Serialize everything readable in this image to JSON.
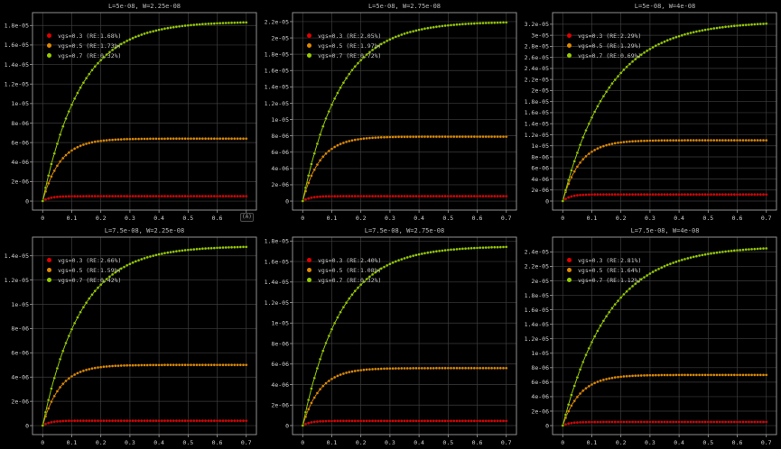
{
  "badge": "(A)",
  "colors": {
    "background": "#000000",
    "grid": "#3c3c3c",
    "spine": "#9f9f9f",
    "tick_label": "#d0d0d0",
    "title": "#b9b9b9",
    "legend_text": "#c8c8c8",
    "red": "#e00000",
    "orange": "#e08900",
    "green": "#96cc00"
  },
  "chart_data": [
    {
      "type": "line",
      "title": "L=5e-08, W=2.25e-08",
      "xlabel": "",
      "ylabel": "",
      "xlim": [
        -0.035,
        0.735
      ],
      "ylim": [
        -9.2e-07,
        1.932e-05
      ],
      "xticks": [
        "0",
        "0.1",
        "0.2",
        "0.3",
        "0.4",
        "0.5",
        "0.6",
        "0.7"
      ],
      "yticks": [
        "0",
        "2e-06",
        "4e-06",
        "6e-06",
        "8e-06",
        "1e-05",
        "1.2e-05",
        "1.4e-05",
        "1.6e-05",
        "1.8e-05"
      ],
      "legend_position": "upper left",
      "grid": true,
      "x": [
        0,
        0.05,
        0.1,
        0.15,
        0.2,
        0.25,
        0.3,
        0.35,
        0.4,
        0.45,
        0.5,
        0.55,
        0.6,
        0.65,
        0.7
      ],
      "series": [
        {
          "name": "vgs=0.3",
          "label": "vgs=0.3 (RE:1.68%)",
          "color": "#e00000",
          "sat": 5e-07,
          "tau": 0.025,
          "y": [
            0,
            4.3e-07,
            4.9e-07,
            5e-07,
            5e-07,
            5e-07,
            5e-07,
            5e-07,
            5e-07,
            5e-07,
            5e-07,
            5e-07,
            5e-07,
            5e-07,
            5e-07
          ]
        },
        {
          "name": "vgs=0.5",
          "label": "vgs=0.5 (RE:1.73%)",
          "color": "#e08900",
          "sat": 6.4e-06,
          "tau": 0.06,
          "y": [
            0,
            3.6e-06,
            5.2e-06,
            5.9e-06,
            6.2e-06,
            6.3e-06,
            6.36e-06,
            6.38e-06,
            6.39e-06,
            6.4e-06,
            6.4e-06,
            6.4e-06,
            6.4e-06,
            6.4e-06,
            6.4e-06
          ]
        },
        {
          "name": "vgs=0.7",
          "label": "vgs=0.7 (RE:0.32%)",
          "color": "#96cc00",
          "sat": 1.84e-05,
          "tau": 0.13,
          "y": [
            0,
            5.9e-06,
            9.9e-06,
            1.26e-05,
            1.44e-05,
            1.57e-05,
            1.66e-05,
            1.71e-05,
            1.76e-05,
            1.78e-05,
            1.8e-05,
            1.81e-05,
            1.82e-05,
            1.83e-05,
            1.83e-05
          ]
        }
      ]
    },
    {
      "type": "line",
      "title": "L=5e-08, W=2.75e-08",
      "xlabel": "",
      "ylabel": "",
      "xlim": [
        -0.035,
        0.735
      ],
      "ylim": [
        -1.1e-06,
        2.31e-05
      ],
      "xticks": [
        "0",
        "0.1",
        "0.2",
        "0.3",
        "0.4",
        "0.5",
        "0.6",
        "0.7"
      ],
      "yticks": [
        "0",
        "2e-06",
        "4e-06",
        "6e-06",
        "8e-06",
        "1e-05",
        "1.2e-05",
        "1.4e-05",
        "1.6e-05",
        "1.8e-05",
        "2e-05",
        "2.2e-05"
      ],
      "legend_position": "upper left",
      "grid": true,
      "x": [
        0,
        0.05,
        0.1,
        0.15,
        0.2,
        0.25,
        0.3,
        0.35,
        0.4,
        0.45,
        0.5,
        0.55,
        0.6,
        0.65,
        0.7
      ],
      "series": [
        {
          "name": "vgs=0.3",
          "label": "vgs=0.3 (RE:2.05%)",
          "color": "#e00000",
          "sat": 6e-07,
          "tau": 0.025,
          "y": [
            0,
            5.2e-07,
            5.9e-07,
            6e-07,
            6e-07,
            6e-07,
            6e-07,
            6e-07,
            6e-07,
            6e-07,
            6e-07,
            6e-07,
            6e-07,
            6e-07,
            6e-07
          ]
        },
        {
          "name": "vgs=0.5",
          "label": "vgs=0.5 (RE:1.97%)",
          "color": "#e08900",
          "sat": 7.9e-06,
          "tau": 0.06,
          "y": [
            0,
            4.5e-06,
            6.4e-06,
            7.3e-06,
            7.6e-06,
            7.8e-06,
            7.85e-06,
            7.88e-06,
            7.89e-06,
            7.9e-06,
            7.9e-06,
            7.9e-06,
            7.9e-06,
            7.9e-06,
            7.9e-06
          ]
        },
        {
          "name": "vgs=0.7",
          "label": "vgs=0.7 (RE:0.72%)",
          "color": "#96cc00",
          "sat": 2.2e-05,
          "tau": 0.13,
          "y": [
            0,
            7e-06,
            1.18e-05,
            1.51e-05,
            1.73e-05,
            1.88e-05,
            1.98e-05,
            2.05e-05,
            2.1e-05,
            2.13e-05,
            2.15e-05,
            2.17e-05,
            2.18e-05,
            2.18e-05,
            2.19e-05
          ]
        }
      ]
    },
    {
      "type": "line",
      "title": "L=5e-08, W=4e-08",
      "xlabel": "",
      "ylabel": "",
      "xlim": [
        -0.035,
        0.735
      ],
      "ylim": [
        -1.63e-06,
        3.41e-05
      ],
      "xticks": [
        "0",
        "0.1",
        "0.2",
        "0.3",
        "0.4",
        "0.5",
        "0.6",
        "0.7"
      ],
      "yticks": [
        "0",
        "2e-06",
        "4e-06",
        "6e-06",
        "8e-06",
        "1e-05",
        "1.2e-05",
        "1.4e-05",
        "1.6e-05",
        "1.8e-05",
        "2e-05",
        "2.2e-05",
        "2.4e-05",
        "2.6e-05",
        "2.8e-05",
        "3e-05",
        "3.2e-05"
      ],
      "legend_position": "upper left",
      "grid": true,
      "x": [
        0,
        0.05,
        0.1,
        0.15,
        0.2,
        0.25,
        0.3,
        0.35,
        0.4,
        0.45,
        0.5,
        0.55,
        0.6,
        0.65,
        0.7
      ],
      "series": [
        {
          "name": "vgs=0.3",
          "label": "vgs=0.3 (RE:2.29%)",
          "color": "#e00000",
          "sat": 1.2e-06,
          "tau": 0.025,
          "y": [
            0,
            1e-06,
            1.18e-06,
            1.2e-06,
            1.2e-06,
            1.2e-06,
            1.2e-06,
            1.2e-06,
            1.2e-06,
            1.2e-06,
            1.2e-06,
            1.2e-06,
            1.2e-06,
            1.2e-06,
            1.2e-06
          ]
        },
        {
          "name": "vgs=0.5",
          "label": "vgs=0.5 (RE:1.29%)",
          "color": "#e08900",
          "sat": 1.1e-05,
          "tau": 0.06,
          "y": [
            0,
            6.2e-06,
            8.9e-06,
            1.01e-05,
            1.06e-05,
            1.08e-05,
            1.09e-05,
            1.1e-05,
            1.1e-05,
            1.1e-05,
            1.1e-05,
            1.1e-05,
            1.1e-05,
            1.1e-05,
            1.1e-05
          ]
        },
        {
          "name": "vgs=0.7",
          "label": "vgs=0.7 (RE:0.69%)",
          "color": "#96cc00",
          "sat": 3.25e-05,
          "tau": 0.16,
          "y": [
            0,
            8.7e-06,
            1.51e-05,
            1.98e-05,
            2.32e-05,
            2.57e-05,
            2.75e-05,
            2.89e-05,
            2.98e-05,
            3.06e-05,
            3.11e-05,
            3.15e-05,
            3.17e-05,
            3.19e-05,
            3.21e-05
          ]
        }
      ]
    },
    {
      "type": "line",
      "title": "L=7.5e-08, W=2.25e-08",
      "xlabel": "",
      "ylabel": "",
      "xlim": [
        -0.035,
        0.735
      ],
      "ylim": [
        -7.4e-07,
        1.554e-05
      ],
      "xticks": [
        "0",
        "0.1",
        "0.2",
        "0.3",
        "0.4",
        "0.5",
        "0.6",
        "0.7"
      ],
      "yticks": [
        "0",
        "2e-06",
        "4e-06",
        "6e-06",
        "8e-06",
        "1e-05",
        "1.2e-05",
        "1.4e-05"
      ],
      "legend_position": "upper left",
      "grid": true,
      "x": [
        0,
        0.05,
        0.1,
        0.15,
        0.2,
        0.25,
        0.3,
        0.35,
        0.4,
        0.45,
        0.5,
        0.55,
        0.6,
        0.65,
        0.7
      ],
      "series": [
        {
          "name": "vgs=0.3",
          "label": "vgs=0.3 (RE:2.66%)",
          "color": "#e00000",
          "sat": 4e-07,
          "tau": 0.025,
          "y": [
            0,
            3.5e-07,
            3.9e-07,
            4e-07,
            4e-07,
            4e-07,
            4e-07,
            4e-07,
            4e-07,
            4e-07,
            4e-07,
            4e-07,
            4e-07,
            4e-07,
            4e-07
          ]
        },
        {
          "name": "vgs=0.5",
          "label": "vgs=0.5 (RE:1.59%)",
          "color": "#e08900",
          "sat": 5e-06,
          "tau": 0.06,
          "y": [
            0,
            2.8e-06,
            4.1e-06,
            4.6e-06,
            4.8e-06,
            4.9e-06,
            4.97e-06,
            4.99e-06,
            5e-06,
            5e-06,
            5e-06,
            5e-06,
            5e-06,
            5e-06,
            5e-06
          ]
        },
        {
          "name": "vgs=0.7",
          "label": "vgs=0.7 (RE:0.42%)",
          "color": "#96cc00",
          "sat": 1.48e-05,
          "tau": 0.13,
          "y": [
            0,
            4.7e-06,
            7.9e-06,
            1.01e-05,
            1.16e-05,
            1.26e-05,
            1.33e-05,
            1.38e-05,
            1.41e-05,
            1.43e-05,
            1.45e-05,
            1.46e-05,
            1.47e-05,
            1.47e-05,
            1.47e-05
          ]
        }
      ]
    },
    {
      "type": "line",
      "title": "L=7.5e-08, W=2.75e-08",
      "xlabel": "",
      "ylabel": "",
      "xlim": [
        -0.035,
        0.735
      ],
      "ylim": [
        -8.8e-07,
        1.838e-05
      ],
      "xticks": [
        "0",
        "0.1",
        "0.2",
        "0.3",
        "0.4",
        "0.5",
        "0.6",
        "0.7"
      ],
      "yticks": [
        "0",
        "2e-06",
        "4e-06",
        "6e-06",
        "8e-06",
        "1e-05",
        "1.2e-05",
        "1.4e-05",
        "1.6e-05",
        "1.8e-05"
      ],
      "legend_position": "upper left",
      "grid": true,
      "x": [
        0,
        0.05,
        0.1,
        0.15,
        0.2,
        0.25,
        0.3,
        0.35,
        0.4,
        0.45,
        0.5,
        0.55,
        0.6,
        0.65,
        0.7
      ],
      "series": [
        {
          "name": "vgs=0.3",
          "label": "vgs=0.3 (RE:2.40%)",
          "color": "#e00000",
          "sat": 4.5e-07,
          "tau": 0.025,
          "y": [
            0,
            3.9e-07,
            4.4e-07,
            4.5e-07,
            4.5e-07,
            4.5e-07,
            4.5e-07,
            4.5e-07,
            4.5e-07,
            4.5e-07,
            4.5e-07,
            4.5e-07,
            4.5e-07,
            4.5e-07,
            4.5e-07
          ]
        },
        {
          "name": "vgs=0.5",
          "label": "vgs=0.5 (RE:1.08%)",
          "color": "#e08900",
          "sat": 5.6e-06,
          "tau": 0.06,
          "y": [
            0,
            3.2e-06,
            4.5e-06,
            5.1e-06,
            5.4e-06,
            5.5e-06,
            5.56e-06,
            5.58e-06,
            5.59e-06,
            5.6e-06,
            5.6e-06,
            5.6e-06,
            5.6e-06,
            5.6e-06,
            5.6e-06
          ]
        },
        {
          "name": "vgs=0.7",
          "label": "vgs=0.7 (RE:0.32%)",
          "color": "#96cc00",
          "sat": 1.75e-05,
          "tau": 0.13,
          "y": [
            0,
            5.6e-06,
            9.4e-06,
            1.2e-05,
            1.37e-05,
            1.49e-05,
            1.58e-05,
            1.63e-05,
            1.67e-05,
            1.7e-05,
            1.71e-05,
            1.73e-05,
            1.73e-05,
            1.74e-05,
            1.74e-05
          ]
        }
      ]
    },
    {
      "type": "line",
      "title": "L=7.5e-08, W=4e-08",
      "xlabel": "",
      "ylabel": "",
      "xlim": [
        -0.035,
        0.735
      ],
      "ylim": [
        -1.24e-06,
        2.604e-05
      ],
      "xticks": [
        "0",
        "0.1",
        "0.2",
        "0.3",
        "0.4",
        "0.5",
        "0.6",
        "0.7"
      ],
      "yticks": [
        "0",
        "2e-06",
        "4e-06",
        "6e-06",
        "8e-06",
        "1e-05",
        "1.2e-05",
        "1.4e-05",
        "1.6e-05",
        "1.8e-05",
        "2e-05",
        "2.2e-05",
        "2.4e-05"
      ],
      "legend_position": "upper left",
      "grid": true,
      "x": [
        0,
        0.05,
        0.1,
        0.15,
        0.2,
        0.25,
        0.3,
        0.35,
        0.4,
        0.45,
        0.5,
        0.55,
        0.6,
        0.65,
        0.7
      ],
      "series": [
        {
          "name": "vgs=0.3",
          "label": "vgs=0.3 (RE:2.81%)",
          "color": "#e00000",
          "sat": 5e-07,
          "tau": 0.025,
          "y": [
            0,
            4.3e-07,
            4.9e-07,
            5e-07,
            5e-07,
            5e-07,
            5e-07,
            5e-07,
            5e-07,
            5e-07,
            5e-07,
            5e-07,
            5e-07,
            5e-07,
            5e-07
          ]
        },
        {
          "name": "vgs=0.5",
          "label": "vgs=0.5 (RE:1.64%)",
          "color": "#e08900",
          "sat": 7e-06,
          "tau": 0.06,
          "y": [
            0,
            4e-06,
            5.7e-06,
            6.4e-06,
            6.7e-06,
            6.9e-06,
            6.95e-06,
            6.98e-06,
            7e-06,
            7e-06,
            7e-06,
            7e-06,
            7e-06,
            7e-06,
            7e-06
          ]
        },
        {
          "name": "vgs=0.7",
          "label": "vgs=0.7 (RE:1.12%)",
          "color": "#96cc00",
          "sat": 2.48e-05,
          "tau": 0.16,
          "y": [
            0,
            6.6e-06,
            1.15e-05,
            1.51e-05,
            1.77e-05,
            1.96e-05,
            2.1e-05,
            2.2e-05,
            2.28e-05,
            2.33e-05,
            2.37e-05,
            2.4e-05,
            2.42e-05,
            2.44e-05,
            2.45e-05
          ]
        }
      ]
    }
  ]
}
